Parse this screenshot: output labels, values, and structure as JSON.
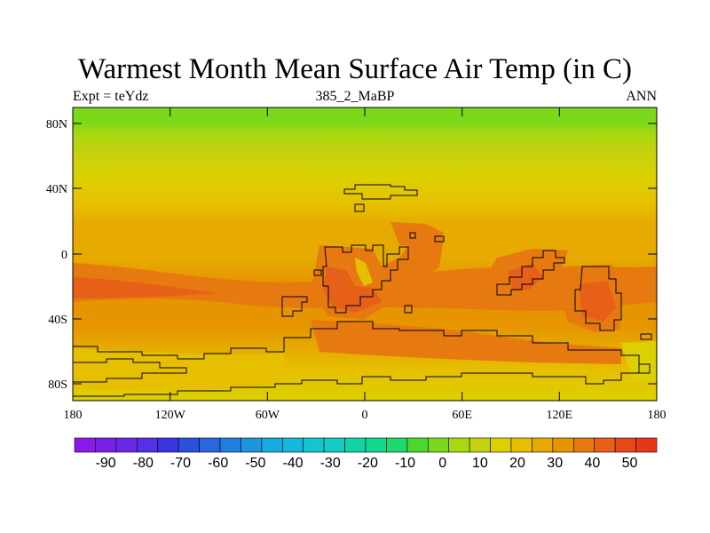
{
  "title": "Warmest Month Mean Surface Air Temp (in C)",
  "subtitle_left": "Expt = teYdz",
  "subtitle_center": "385_2_MaBP",
  "subtitle_right": "ANN",
  "lat_ticks": [
    "80N",
    "40N",
    "0",
    "40S",
    "80S"
  ],
  "lon_ticks": [
    "180",
    "120W",
    "60W",
    "0",
    "60E",
    "120E",
    "180"
  ],
  "colorbar": {
    "levels": [
      "-90",
      "-80",
      "-70",
      "-60",
      "-50",
      "-40",
      "-30",
      "-20",
      "-10",
      "0",
      "10",
      "20",
      "30",
      "40",
      "50"
    ],
    "colors": [
      "#8a1ae6",
      "#7a20e6",
      "#6a28e6",
      "#5630e6",
      "#3a34e0",
      "#2a50dc",
      "#2a68dc",
      "#1e80dc",
      "#1e96dc",
      "#18aae0",
      "#14b8dc",
      "#14c4d0",
      "#14ccc0",
      "#14d2a8",
      "#14d890",
      "#20d870",
      "#48d830",
      "#7cd81a",
      "#a8d810",
      "#c4d210",
      "#dcd000",
      "#e6c000",
      "#e6aa00",
      "#e69400",
      "#e67a10",
      "#e66018",
      "#e64818",
      "#e63818"
    ]
  },
  "chart_data": {
    "type": "heatmap",
    "title": "Warmest Month Mean Surface Air Temp (in C)",
    "units": "C",
    "x_range": [
      -180,
      180
    ],
    "y_range": [
      -90,
      90
    ],
    "zonal_bands": [
      {
        "lat_from": 90,
        "lat_to": 80,
        "value": 5
      },
      {
        "lat_from": 80,
        "lat_to": 70,
        "value": 10
      },
      {
        "lat_from": 70,
        "lat_to": 60,
        "value": 15
      },
      {
        "lat_from": 60,
        "lat_to": 50,
        "value": 20
      },
      {
        "lat_from": 50,
        "lat_to": 40,
        "value": 25
      },
      {
        "lat_from": 40,
        "lat_to": 20,
        "value": 30
      },
      {
        "lat_from": 20,
        "lat_to": -10,
        "value": 32
      },
      {
        "lat_from": -10,
        "lat_to": -30,
        "value": 38
      },
      {
        "lat_from": -30,
        "lat_to": -50,
        "value": 32
      },
      {
        "lat_from": -50,
        "lat_to": -70,
        "value": 28
      },
      {
        "lat_from": -70,
        "lat_to": -90,
        "value": 22
      }
    ]
  }
}
